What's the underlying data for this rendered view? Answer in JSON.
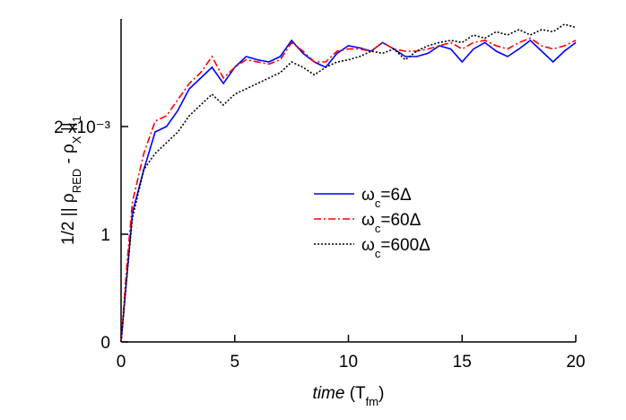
{
  "chart_data": {
    "type": "line",
    "x_label": [
      {
        "text": "time",
        "style": "italic"
      },
      {
        "text": " (T"
      },
      {
        "text": "fm",
        "style": "sub"
      },
      {
        "text": ")"
      }
    ],
    "y_label": [
      {
        "text": "1/2 || ρ"
      },
      {
        "text": "RED",
        "style": "sub"
      },
      {
        "text": " - ρ"
      },
      {
        "text": "X",
        "style": "sub"
      },
      {
        "text": " ||"
      },
      {
        "text": "1",
        "style": "sub"
      }
    ],
    "x": [
      0,
      0.25,
      0.5,
      1,
      1.5,
      2,
      2.5,
      3,
      3.5,
      4,
      4.5,
      5,
      5.5,
      6,
      6.5,
      7,
      7.5,
      8,
      8.5,
      9,
      9.5,
      10,
      10.5,
      11,
      11.5,
      12,
      12.5,
      13,
      13.5,
      14,
      14.5,
      15,
      15.5,
      16,
      16.5,
      17,
      17.5,
      18,
      18.5,
      19,
      19.5,
      20
    ],
    "series": [
      {
        "name": [
          {
            "text": "ω"
          },
          {
            "text": "c",
            "style": "sub"
          },
          {
            "text": "=6Δ"
          }
        ],
        "color": "#0000ff",
        "dash": "solid",
        "values": [
          0,
          0.6,
          1.2,
          1.6,
          1.95,
          2.0,
          2.15,
          2.35,
          2.45,
          2.55,
          2.4,
          2.55,
          2.65,
          2.62,
          2.6,
          2.65,
          2.8,
          2.68,
          2.6,
          2.55,
          2.68,
          2.75,
          2.73,
          2.7,
          2.78,
          2.72,
          2.65,
          2.65,
          2.68,
          2.75,
          2.72,
          2.6,
          2.72,
          2.78,
          2.7,
          2.65,
          2.72,
          2.8,
          2.7,
          2.6,
          2.7,
          2.78
        ]
      },
      {
        "name": [
          {
            "text": "ω"
          },
          {
            "text": "c",
            "style": "sub"
          },
          {
            "text": "=60Δ"
          }
        ],
        "color": "#ff0000",
        "dash": "dashdot",
        "values": [
          0,
          0.7,
          1.3,
          1.75,
          2.05,
          2.1,
          2.25,
          2.4,
          2.5,
          2.65,
          2.45,
          2.55,
          2.62,
          2.6,
          2.58,
          2.62,
          2.78,
          2.7,
          2.6,
          2.6,
          2.7,
          2.72,
          2.72,
          2.7,
          2.78,
          2.72,
          2.7,
          2.7,
          2.72,
          2.75,
          2.78,
          2.72,
          2.78,
          2.8,
          2.75,
          2.72,
          2.78,
          2.82,
          2.75,
          2.72,
          2.75,
          2.8
        ]
      },
      {
        "name": [
          {
            "text": "ω"
          },
          {
            "text": "c",
            "style": "sub"
          },
          {
            "text": "=600Δ"
          }
        ],
        "color": "#000000",
        "dash": "dotted",
        "values": [
          0,
          0.6,
          1.15,
          1.6,
          1.75,
          1.85,
          1.95,
          2.1,
          2.2,
          2.3,
          2.2,
          2.3,
          2.35,
          2.4,
          2.45,
          2.5,
          2.6,
          2.55,
          2.48,
          2.55,
          2.6,
          2.62,
          2.65,
          2.7,
          2.68,
          2.72,
          2.62,
          2.7,
          2.75,
          2.78,
          2.8,
          2.78,
          2.85,
          2.82,
          2.88,
          2.85,
          2.9,
          2.85,
          2.9,
          2.88,
          2.95,
          2.92
        ]
      }
    ],
    "xlim": [
      0,
      20
    ],
    "xticks": [
      0,
      5,
      10,
      15,
      20
    ],
    "ylim": [
      0,
      3
    ],
    "yticks": [
      0,
      1,
      {
        "value": 2,
        "label": "2 x10⁻³"
      }
    ],
    "grid": false
  }
}
